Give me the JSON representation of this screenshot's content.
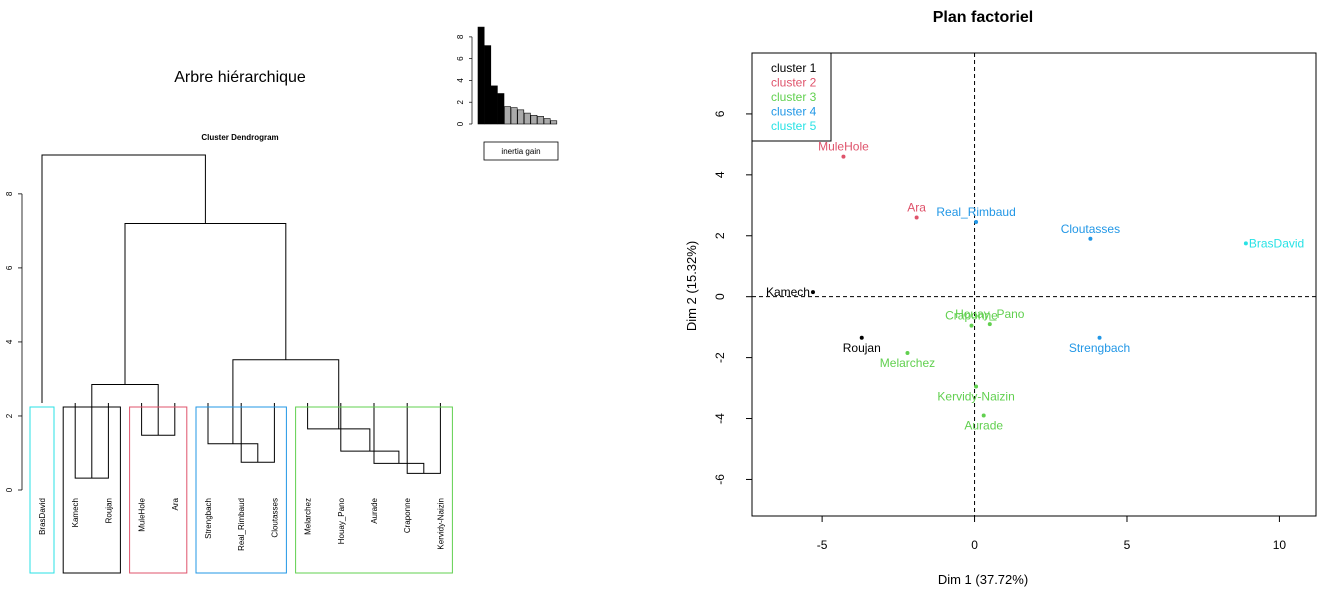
{
  "colors": {
    "cluster1": "#000000",
    "cluster2": "#DF536B",
    "cluster3": "#61D04F",
    "cluster4": "#2297E6",
    "cluster5": "#28E2E5"
  },
  "chart_data": [
    {
      "type": "bar",
      "legend_label": "inertia gain",
      "values": [
        8.9,
        7.2,
        3.5,
        2.8,
        1.6,
        1.5,
        1.3,
        1.0,
        0.8,
        0.7,
        0.5,
        0.3
      ],
      "series_colors": [
        "#000000",
        "#000000",
        "#000000",
        "#000000",
        "#aaaaaa",
        "#aaaaaa",
        "#aaaaaa",
        "#aaaaaa",
        "#aaaaaa",
        "#aaaaaa",
        "#aaaaaa",
        "#aaaaaa"
      ],
      "ylim": [
        0,
        9
      ],
      "yticks": [
        0,
        2,
        4,
        6,
        8
      ]
    },
    {
      "type": "dendrogram",
      "title": "Arbre hiérarchique",
      "subtitle": "Cluster Dendrogram",
      "ylim": [
        0,
        9.3
      ],
      "yticks": [
        0,
        2,
        4,
        6,
        8
      ],
      "leaves": [
        "BrasDavid",
        "Kamech",
        "Roujan",
        "MuleHole",
        "Ara",
        "Strengbach",
        "Real_Rimbaud",
        "Cloutasses",
        "Melarchez",
        "Houay_Pano",
        "Aurade",
        "Craponne",
        "Kervidy-Naizin"
      ],
      "merges": [
        {
          "a": "Kamech",
          "b": "Roujan",
          "height": 0.32
        },
        {
          "a": "Craponne",
          "b": "Kervidy-Naizin",
          "height": 0.45
        },
        {
          "a": "Real_Rimbaud",
          "b": "Cloutasses",
          "height": 0.75
        },
        {
          "a": "Aurade",
          "b": "m2",
          "height": 0.72
        },
        {
          "a": "Houay_Pano",
          "b": "m4",
          "height": 1.05
        },
        {
          "a": "Strengbach",
          "b": "m3",
          "height": 1.25
        },
        {
          "a": "MuleHole",
          "b": "Ara",
          "height": 1.48
        },
        {
          "a": "Melarchez",
          "b": "m5",
          "height": 1.65
        },
        {
          "a": "m1",
          "b": "m7",
          "height": 2.85
        },
        {
          "a": "m6",
          "b": "m8",
          "height": 3.52
        },
        {
          "a": "m9",
          "b": "m10",
          "height": 7.2
        },
        {
          "a": "BrasDavid",
          "b": "m11",
          "height": 9.05
        }
      ],
      "cluster_boxes": [
        {
          "cluster": 5,
          "leaves": [
            "BrasDavid"
          ]
        },
        {
          "cluster": 1,
          "leaves": [
            "Kamech",
            "Roujan"
          ]
        },
        {
          "cluster": 2,
          "leaves": [
            "MuleHole",
            "Ara"
          ]
        },
        {
          "cluster": 4,
          "leaves": [
            "Strengbach",
            "Real_Rimbaud",
            "Cloutasses"
          ]
        },
        {
          "cluster": 3,
          "leaves": [
            "Melarchez",
            "Houay_Pano",
            "Aurade",
            "Craponne",
            "Kervidy-Naizin"
          ]
        }
      ]
    },
    {
      "type": "scatter",
      "title": "Plan factoriel",
      "xlabel": "Dim 1 (37.72%)",
      "ylabel": "Dim 2 (15.32%)",
      "xlim": [
        -7.3,
        11.2
      ],
      "ylim": [
        -7.2,
        8
      ],
      "xticks": [
        -5,
        0,
        5,
        10
      ],
      "yticks": [
        -6,
        -4,
        -2,
        0,
        2,
        4,
        6
      ],
      "legend": [
        "cluster 1",
        "cluster 2",
        "cluster 3",
        "cluster 4",
        "cluster 5"
      ],
      "legend_position": "top-left",
      "points": [
        {
          "label": "Kamech",
          "x": -5.3,
          "y": 0.15,
          "cluster": 1,
          "lpos": "left"
        },
        {
          "label": "Roujan",
          "x": -3.7,
          "y": -1.35,
          "cluster": 1,
          "lpos": "below"
        },
        {
          "label": "MuleHole",
          "x": -4.3,
          "y": 4.6,
          "cluster": 2,
          "lpos": "above"
        },
        {
          "label": "Ara",
          "x": -1.9,
          "y": 2.6,
          "cluster": 2,
          "lpos": "above"
        },
        {
          "label": "Craponne",
          "x": -0.1,
          "y": -0.95,
          "cluster": 3,
          "lpos": "above"
        },
        {
          "label": "Houay_Pano",
          "x": 0.5,
          "y": -0.9,
          "cluster": 3,
          "lpos": "above"
        },
        {
          "label": "Melarchez",
          "x": -2.2,
          "y": -1.85,
          "cluster": 3,
          "lpos": "below"
        },
        {
          "label": "Kervidy-Naizin",
          "x": 0.05,
          "y": -2.95,
          "cluster": 3,
          "lpos": "below"
        },
        {
          "label": "Aurade",
          "x": 0.3,
          "y": -3.9,
          "cluster": 3,
          "lpos": "below"
        },
        {
          "label": "Real_Rimbaud",
          "x": 0.05,
          "y": 2.45,
          "cluster": 4,
          "lpos": "above"
        },
        {
          "label": "Cloutasses",
          "x": 3.8,
          "y": 1.9,
          "cluster": 4,
          "lpos": "above"
        },
        {
          "label": "Strengbach",
          "x": 4.1,
          "y": -1.35,
          "cluster": 4,
          "lpos": "below"
        },
        {
          "label": "BrasDavid",
          "x": 8.9,
          "y": 1.75,
          "cluster": 5,
          "lpos": "right"
        }
      ]
    }
  ]
}
